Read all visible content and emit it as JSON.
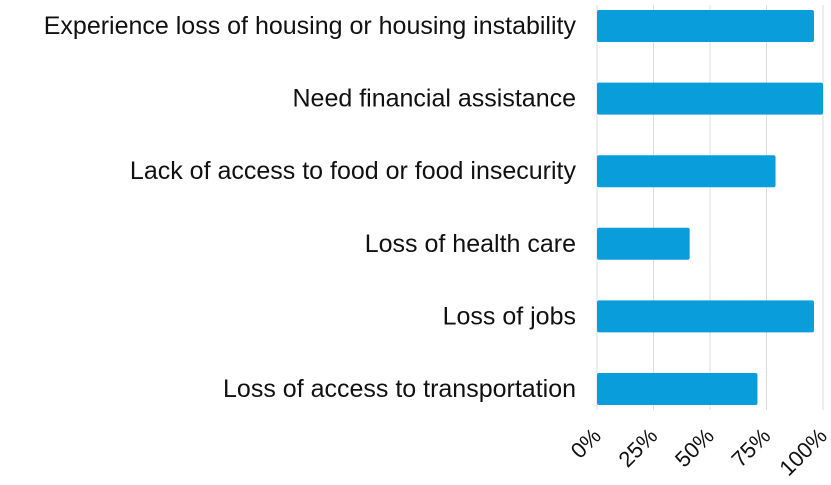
{
  "chart_data": {
    "type": "bar",
    "orientation": "horizontal",
    "categories": [
      "Experience loss of housing or housing instability",
      "Need financial assistance",
      "Lack of access to food or food insecurity",
      "Loss of health care",
      "Loss of jobs",
      "Loss of access to transportation"
    ],
    "values": [
      96,
      100,
      79,
      41,
      96,
      71
    ],
    "xlim": [
      0,
      100
    ],
    "xticks": [
      0,
      25,
      50,
      75,
      100
    ],
    "xtick_labels": [
      "0%",
      "25%",
      "50%",
      "75%",
      "100%"
    ],
    "title": "",
    "xlabel": "",
    "ylabel": "",
    "grid": true,
    "bar_color": "#0a9ddc"
  }
}
